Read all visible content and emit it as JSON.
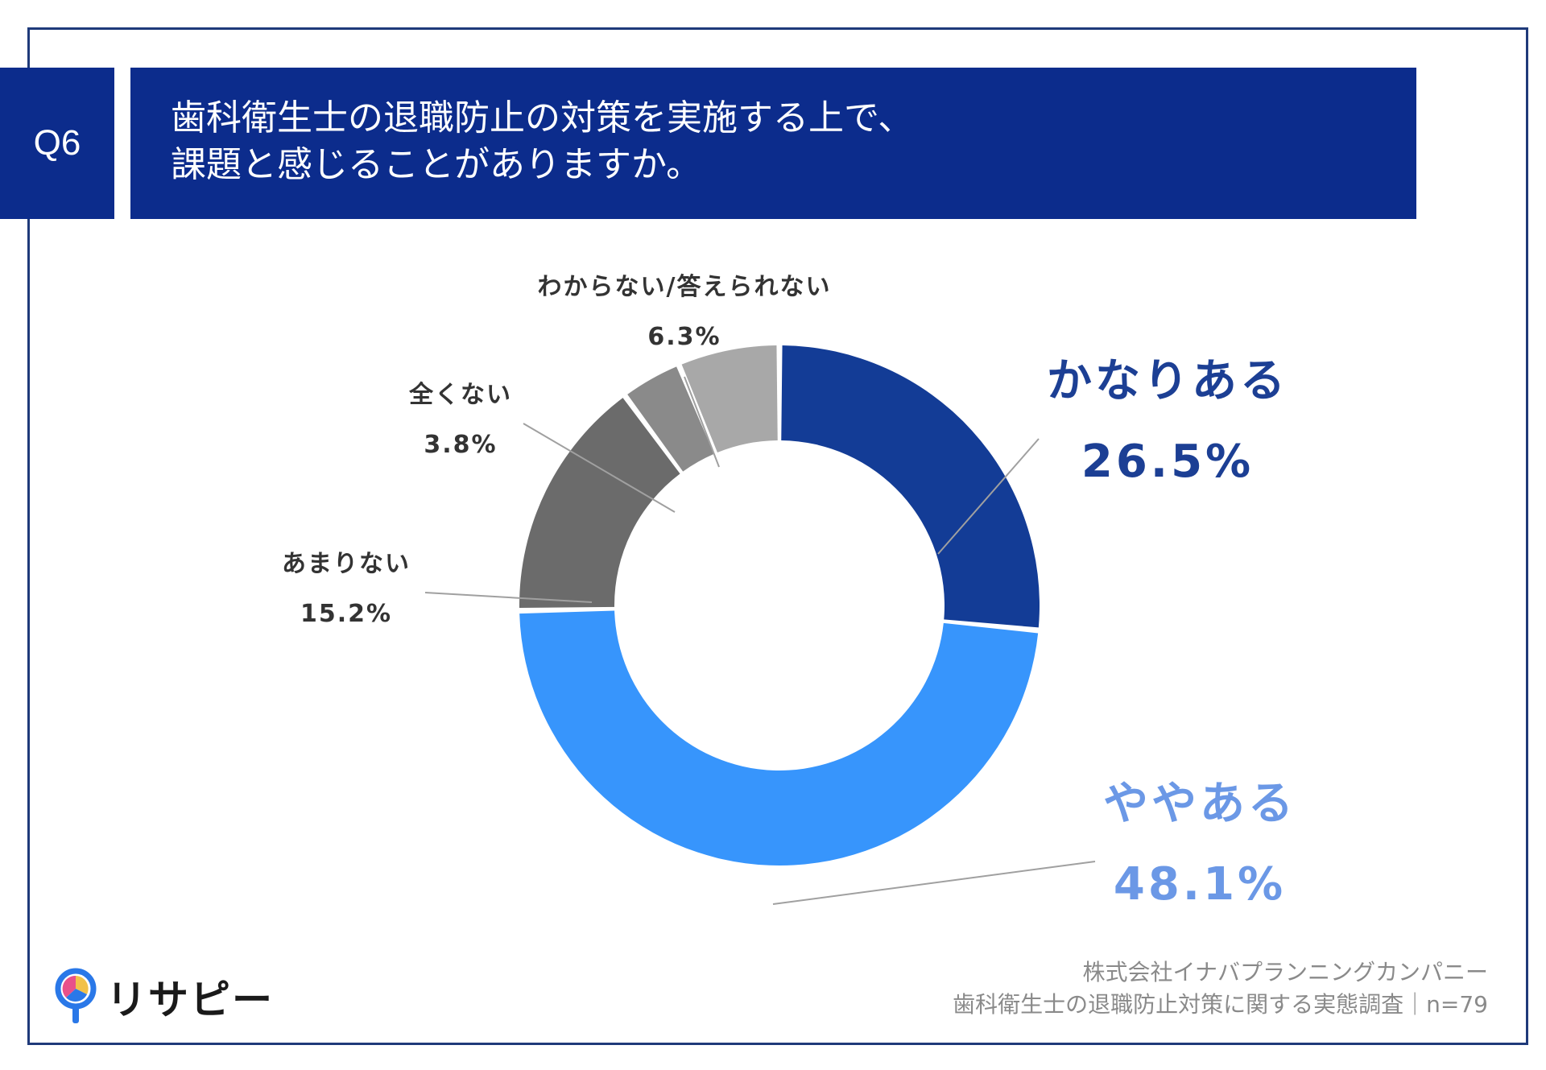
{
  "header": {
    "question_no": "Q6",
    "title_line1": "歯科衛生士の退職防止の対策を実施する上で、",
    "title_line2": "課題と感じることがありますか。"
  },
  "chart_data": {
    "type": "pie",
    "donut": true,
    "slices": [
      {
        "label": "かなりある",
        "value": 26.5,
        "value_label": "26.5%",
        "color": "#133c96"
      },
      {
        "label": "ややある",
        "value": 48.1,
        "value_label": "48.1%",
        "color": "#3795fc"
      },
      {
        "label": "あまりない",
        "value": 15.2,
        "value_label": "15.2%",
        "color": "#6b6b6b"
      },
      {
        "label": "全くない",
        "value": 3.8,
        "value_label": "3.8%",
        "color": "#8a8a8a"
      },
      {
        "label": "わからない/答えられない",
        "value": 6.3,
        "value_label": "6.3%",
        "color": "#a8a8a8"
      }
    ],
    "start": "12 o'clock, clockwise"
  },
  "footer": {
    "source_line1": "株式会社イナバプランニングカンパニー",
    "source_line2": "歯科衛生士の退職防止対策に関する実態調査｜n=79",
    "logo_text": "リサピー"
  }
}
